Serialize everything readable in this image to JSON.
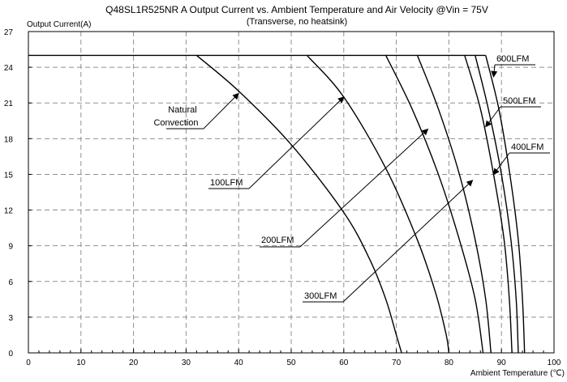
{
  "chart_data": {
    "type": "line",
    "title": "Q48SL1R525NR A Output Current vs. Ambient Temperature and Air Velocity @Vin = 75V",
    "subtitle": "(Transverse, no heatsink)",
    "xlabel": "Ambient Temperature (℃)",
    "ylabel": "Output Current(A)",
    "xlim": [
      0,
      100
    ],
    "ylim": [
      0,
      27
    ],
    "xticks": [
      0,
      10,
      20,
      30,
      40,
      50,
      60,
      70,
      80,
      90,
      100
    ],
    "yticks": [
      0,
      3,
      6,
      9,
      12,
      15,
      18,
      21,
      24,
      27
    ],
    "grid": true,
    "series": [
      {
        "name": "Natural Convection",
        "x": [
          32,
          40,
          50,
          60,
          65,
          68,
          70,
          71
        ],
        "y": [
          25,
          22,
          17.5,
          11.8,
          7.8,
          4.5,
          1.5,
          0
        ]
      },
      {
        "name": "100LFM",
        "x": [
          53,
          60,
          68,
          74,
          77.5,
          79.5,
          80
        ],
        "y": [
          25,
          21.5,
          15.5,
          9.5,
          5,
          1.5,
          0
        ]
      },
      {
        "name": "200LFM",
        "x": [
          68,
          73,
          78,
          82,
          85,
          86.5
        ],
        "y": [
          25,
          20.5,
          15,
          9.5,
          4.5,
          0
        ]
      },
      {
        "name": "300LFM",
        "x": [
          74,
          78,
          82,
          85,
          87,
          88
        ],
        "y": [
          25,
          20.5,
          15,
          9.5,
          4.5,
          0
        ]
      },
      {
        "name": "400LFM",
        "x": [
          83,
          86,
          88.5,
          90.5,
          91.5,
          92
        ],
        "y": [
          25,
          20.5,
          15,
          9.5,
          4.5,
          0
        ]
      },
      {
        "name": "500LFM",
        "x": [
          85,
          87.5,
          90,
          91.8,
          92.8,
          93.2
        ],
        "y": [
          25,
          20.5,
          15,
          9.5,
          4.5,
          0
        ]
      },
      {
        "name": "600LFM",
        "x": [
          87,
          89.5,
          91.6,
          93.2,
          94,
          94.4
        ],
        "y": [
          25,
          20.5,
          15,
          9.5,
          4.5,
          0
        ]
      }
    ],
    "cap_line": {
      "x": [
        0,
        87
      ],
      "y": [
        25,
        25
      ]
    },
    "annotations": [
      {
        "text": "Natural",
        "text2": "Convection",
        "arrow_to": [
          40,
          21.8
        ]
      },
      {
        "text": "100LFM",
        "arrow_to": [
          60,
          21.5
        ]
      },
      {
        "text": "200LFM",
        "arrow_to": [
          76,
          18.8
        ]
      },
      {
        "text": "300LFM",
        "arrow_to": [
          84.5,
          14.5
        ]
      },
      {
        "text": "400LFM",
        "arrow_to": [
          88.5,
          15
        ]
      },
      {
        "text": "500LFM",
        "arrow_to": [
          87,
          19
        ]
      },
      {
        "text": "600LFM",
        "arrow_to": [
          88.5,
          23.2
        ]
      }
    ]
  }
}
